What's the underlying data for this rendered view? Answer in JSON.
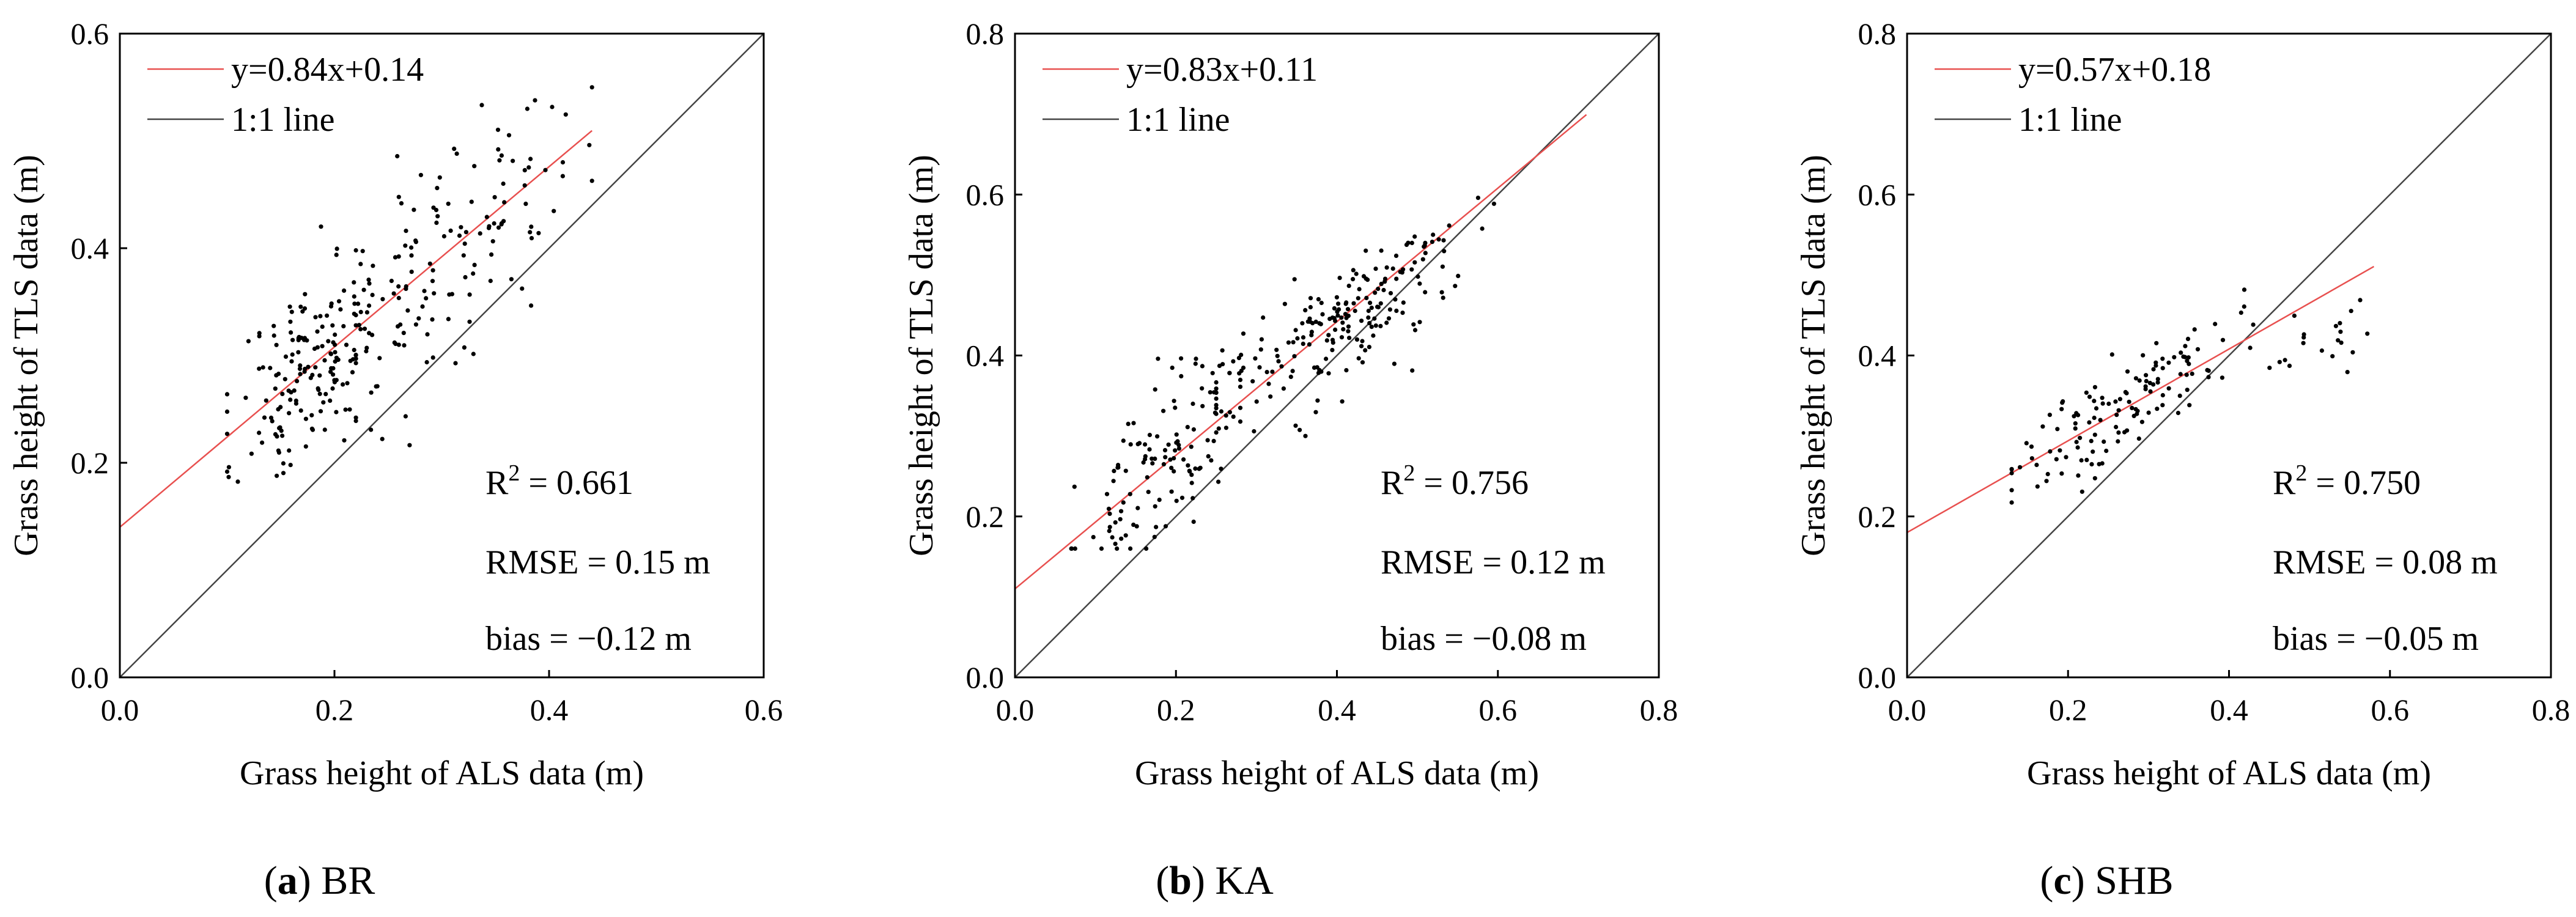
{
  "chart_data": [
    {
      "type": "scatter",
      "panel_id": "a",
      "panel_letter": "a",
      "panel_name": "BR",
      "xlabel": "Grass height of ALS data (m)",
      "ylabel": "Grass height of TLS data (m)",
      "xlim": [
        0.0,
        0.6
      ],
      "ylim": [
        0.0,
        0.6
      ],
      "x_ticks": [
        "0.0",
        "0.2",
        "0.4",
        "0.6"
      ],
      "y_ticks": [
        "0.0",
        "0.2",
        "0.4",
        "0.6"
      ],
      "x_tick_values": [
        0.0,
        0.2,
        0.4,
        0.6
      ],
      "y_tick_values": [
        0.0,
        0.2,
        0.4,
        0.6
      ],
      "legend": [
        {
          "label": "y=0.84x+0.14",
          "color": "#e8504f"
        },
        {
          "label": "1:1 line",
          "color": "#444444"
        }
      ],
      "fit": {
        "slope": 0.84,
        "intercept": 0.14,
        "x_range": [
          0.0,
          0.44
        ]
      },
      "stats": {
        "r2": "0.661",
        "rmse": "RMSE = 0.15 m",
        "bias": "bias = −0.12 m"
      },
      "point_count": 300,
      "point_cloud": [
        {
          "x_mean": 0.18,
          "x_sd": 0.035,
          "slope": 0.84,
          "intercept": 0.14,
          "noise": 0.045,
          "n": 170,
          "xmin": 0.1,
          "xmax": 0.26
        },
        {
          "x_mean": 0.31,
          "x_sd": 0.06,
          "slope": 0.84,
          "intercept": 0.14,
          "noise": 0.05,
          "n": 130,
          "xmin": 0.22,
          "xmax": 0.44
        }
      ],
      "seed": 11
    },
    {
      "type": "scatter",
      "panel_id": "b",
      "panel_letter": "b",
      "panel_name": "KA",
      "xlabel": "Grass height of ALS data (m)",
      "ylabel": "Grass height of TLS data (m)",
      "xlim": [
        0.0,
        0.8
      ],
      "ylim": [
        0.0,
        0.8
      ],
      "x_ticks": [
        "0.0",
        "0.2",
        "0.4",
        "0.6",
        "0.8"
      ],
      "y_ticks": [
        "0.0",
        "0.2",
        "0.4",
        "0.6",
        "0.8"
      ],
      "x_tick_values": [
        0.0,
        0.2,
        0.4,
        0.6,
        0.8
      ],
      "y_tick_values": [
        0.0,
        0.2,
        0.4,
        0.6,
        0.8
      ],
      "legend": [
        {
          "label": "y=0.83x+0.11",
          "color": "#e8504f"
        },
        {
          "label": "1:1 line",
          "color": "#444444"
        }
      ],
      "fit": {
        "slope": 0.83,
        "intercept": 0.11,
        "x_range": [
          0.0,
          0.71
        ]
      },
      "stats": {
        "r2": "0.756",
        "rmse": "RMSE = 0.12 m",
        "bias": "bias = −0.08 m"
      },
      "point_count": 320,
      "point_cloud": [
        {
          "x_mean": 0.18,
          "x_sd": 0.05,
          "slope": 0.83,
          "intercept": 0.11,
          "noise": 0.045,
          "n": 120,
          "xmin": 0.07,
          "xmax": 0.28
        },
        {
          "x_mean": 0.4,
          "x_sd": 0.08,
          "slope": 0.55,
          "intercept": 0.22,
          "noise": 0.04,
          "n": 200,
          "xmin": 0.25,
          "xmax": 0.71
        }
      ],
      "seed": 23
    },
    {
      "type": "scatter",
      "panel_id": "c",
      "panel_letter": "c",
      "panel_name": "SHB",
      "xlabel": "Grass height of ALS data (m)",
      "ylabel": "Grass height of TLS data (m)",
      "xlim": [
        0.0,
        0.8
      ],
      "ylim": [
        0.0,
        0.8
      ],
      "x_ticks": [
        "0.0",
        "0.2",
        "0.4",
        "0.6",
        "0.8"
      ],
      "y_ticks": [
        "0.0",
        "0.2",
        "0.4",
        "0.6",
        "0.8"
      ],
      "x_tick_values": [
        0.0,
        0.2,
        0.4,
        0.6,
        0.8
      ],
      "y_tick_values": [
        0.0,
        0.2,
        0.4,
        0.6,
        0.8
      ],
      "legend": [
        {
          "label": "y=0.57x+0.18",
          "color": "#e8504f"
        },
        {
          "label": "1:1 line",
          "color": "#444444"
        }
      ],
      "fit": {
        "slope": 0.57,
        "intercept": 0.18,
        "x_range": [
          0.0,
          0.58
        ]
      },
      "stats": {
        "r2": "0.750",
        "rmse": "RMSE = 0.08 m",
        "bias": "bias = −0.05 m"
      },
      "point_count": 150,
      "point_cloud": [
        {
          "x_mean": 0.27,
          "x_sd": 0.07,
          "slope": 0.7,
          "intercept": 0.15,
          "noise": 0.03,
          "n": 130,
          "xmin": 0.13,
          "xmax": 0.45
        },
        {
          "x_mean": 0.5,
          "x_sd": 0.03,
          "slope": 0.15,
          "intercept": 0.34,
          "noise": 0.025,
          "n": 20,
          "xmin": 0.45,
          "xmax": 0.58
        }
      ],
      "seed": 37
    }
  ]
}
